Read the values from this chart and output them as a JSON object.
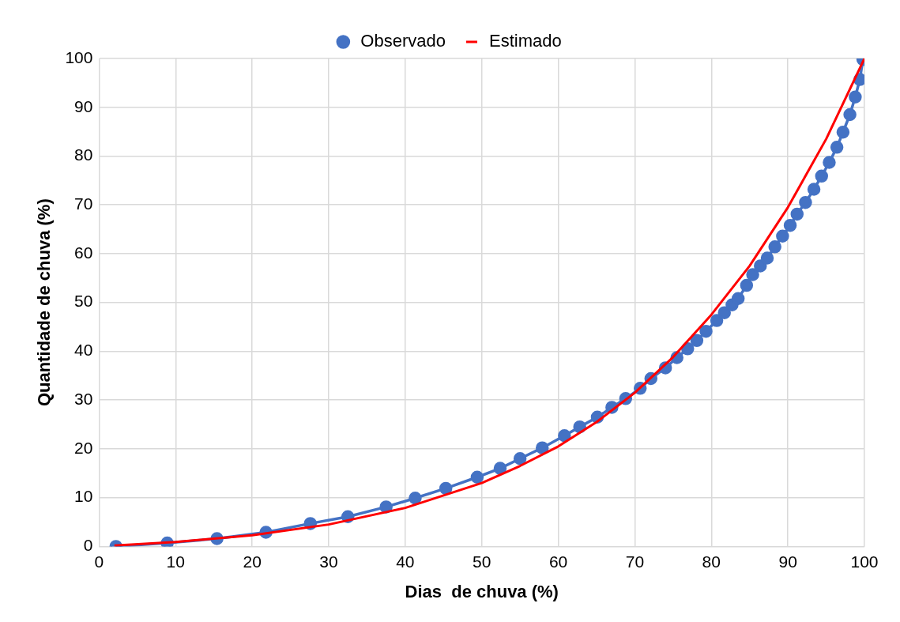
{
  "chart_data": {
    "type": "line",
    "xlabel": "Dias  de chuva (%)",
    "ylabel": "Quantidade de chuva (%)",
    "xlim": [
      0,
      100
    ],
    "xticks": [
      0,
      10,
      20,
      30,
      40,
      50,
      60,
      70,
      80,
      90,
      100
    ],
    "ylim": [
      0,
      100
    ],
    "yticks": [
      0,
      10,
      20,
      30,
      40,
      50,
      60,
      70,
      80,
      90,
      100
    ],
    "grid": true,
    "legend": "top",
    "series": [
      {
        "name": "Observado",
        "color": "#4472c4",
        "marker": "circle",
        "x": [
          2.2,
          8.9,
          15.4,
          21.8,
          27.6,
          32.5,
          37.5,
          41.3,
          45.3,
          49.4,
          52.4,
          55.0,
          57.9,
          60.8,
          62.8,
          65.1,
          67.0,
          68.8,
          70.7,
          72.1,
          74.0,
          75.5,
          76.9,
          78.1,
          79.3,
          80.7,
          81.7,
          82.7,
          83.5,
          84.6,
          85.4,
          86.4,
          87.3,
          88.3,
          89.3,
          90.3,
          91.2,
          92.3,
          93.4,
          94.4,
          95.4,
          96.4,
          97.2,
          98.1,
          98.8,
          99.4,
          99.8,
          100
        ],
        "values": [
          0,
          0.7,
          1.6,
          2.9,
          4.7,
          6.1,
          8.1,
          9.9,
          11.9,
          14.2,
          16.0,
          18.0,
          20.2,
          22.7,
          24.5,
          26.5,
          28.5,
          30.3,
          32.4,
          34.4,
          36.6,
          38.7,
          40.5,
          42.2,
          44.1,
          46.3,
          47.9,
          49.5,
          50.8,
          53.5,
          55.7,
          57.5,
          59.1,
          61.4,
          63.6,
          65.8,
          68.1,
          70.5,
          73.2,
          75.9,
          78.7,
          81.8,
          84.9,
          88.5,
          92.1,
          95.7,
          99.8,
          100
        ]
      },
      {
        "name": "Estimado",
        "color": "#ff0000",
        "marker": "none",
        "x": [
          2,
          10,
          20,
          30,
          40,
          50,
          55,
          60,
          65,
          70,
          75,
          80,
          85,
          90,
          95,
          100
        ],
        "values": [
          0.2,
          0.9,
          2.3,
          4.5,
          7.9,
          13,
          16.5,
          20.5,
          25.5,
          31.5,
          38.8,
          47.5,
          57.5,
          69.5,
          83.5,
          100
        ]
      }
    ]
  }
}
